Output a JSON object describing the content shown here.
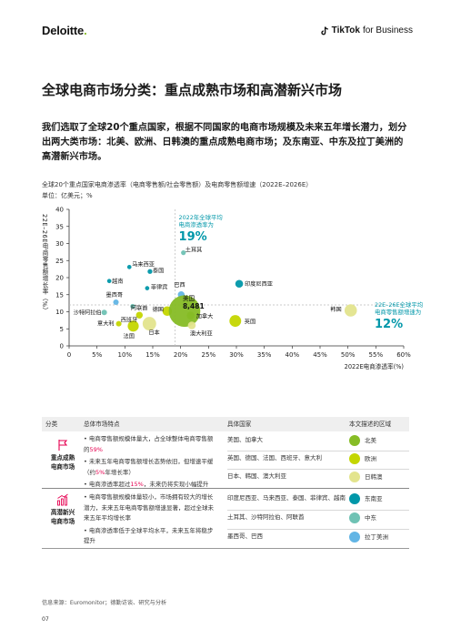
{
  "header": {
    "deloitte_logo": "Deloitte",
    "deloitte_dot": ".",
    "tiktok_logo_strong": "TikTok",
    "tiktok_logo_rest": "for Business"
  },
  "page_title": "全球电商市场分类：重点成熟市场和高潜新兴市场",
  "intro": "我们选取了全球20个重点国家，根据不同国家的电商市场规模及未来五年增长潜力，划分出两大类市场：北美、欧洲、日韩澳的重点成熟电商市场；及东南亚、中东及拉丁美洲的高潜新兴市场。",
  "chart_title": "全球20个重点国家电商渗透率（电商零售额/社会零售额）及电商零售额增速（2022E–2026E）",
  "chart_unit": "单位：亿美元；%",
  "chart_data": {
    "type": "scatter",
    "xlabel": "2022E电商渗透率(%)",
    "ylabel": "22E–26E电商零售额增长率（%）",
    "xlim": [
      0,
      60
    ],
    "ylim": [
      0,
      40
    ],
    "xticks": [
      "0",
      "5%",
      "10%",
      "15%",
      "20%",
      "25%",
      "30%",
      "35%",
      "40%",
      "45%",
      "50%",
      "55%",
      "60%"
    ],
    "yticks": [
      "0",
      "5",
      "10",
      "15",
      "20",
      "25",
      "30",
      "35",
      "40"
    ],
    "avg_x_label": "2022年全球平均\n电商渗透率为",
    "avg_x_value": "19%",
    "avg_x": 19,
    "avg_y_label": "22E–26E全球平均\n电商零售额增速为",
    "avg_y_value": "12%",
    "avg_y": 12,
    "points": [
      {
        "name": "土耳其",
        "x": 20.5,
        "y": 27.3,
        "size": 1.5,
        "region": "me"
      },
      {
        "name": "马来西亚",
        "x": 10.8,
        "y": 23.1,
        "size": 1.2,
        "region": "sea"
      },
      {
        "name": "泰国",
        "x": 14.5,
        "y": 21.8,
        "size": 1.5,
        "region": "sea"
      },
      {
        "name": "越南",
        "x": 7.2,
        "y": 19.0,
        "size": 1.2,
        "region": "sea"
      },
      {
        "name": "菲律宾",
        "x": 14.0,
        "y": 16.9,
        "size": 1.2,
        "region": "sea"
      },
      {
        "name": "印度尼西亚",
        "x": 30.5,
        "y": 18.2,
        "size": 4.0,
        "region": "sea"
      },
      {
        "name": "巴西",
        "x": 20.1,
        "y": 15.0,
        "size": 3.0,
        "region": "latam"
      },
      {
        "name": "墨西哥",
        "x": 8.4,
        "y": 12.8,
        "size": 2.0,
        "region": "latam"
      },
      {
        "name": "阿联酋",
        "x": 11.4,
        "y": 11.6,
        "size": 1.5,
        "region": "me"
      },
      {
        "name": "沙特阿拉伯",
        "x": 6.3,
        "y": 9.8,
        "size": 2.0,
        "region": "me"
      },
      {
        "name": "德国",
        "x": 17.6,
        "y": 10.2,
        "size": 6.0,
        "region": "eu"
      },
      {
        "name": "西班牙",
        "x": 12.6,
        "y": 9.0,
        "size": 3.0,
        "region": "eu"
      },
      {
        "name": "美国",
        "x": 20.7,
        "y": 10.2,
        "size": 65.0,
        "region": "na",
        "label_value": "8,481"
      },
      {
        "name": "加拿大",
        "x": 21.8,
        "y": 8.9,
        "size": 4.0,
        "region": "na"
      },
      {
        "name": "意大利",
        "x": 8.9,
        "y": 6.5,
        "size": 2.0,
        "region": "eu"
      },
      {
        "name": "法国",
        "x": 11.5,
        "y": 5.8,
        "size": 8.0,
        "region": "eu"
      },
      {
        "name": "日本",
        "x": 14.4,
        "y": 6.5,
        "size": 12.0,
        "region": "jka"
      },
      {
        "name": "澳大利亚",
        "x": 22.0,
        "y": 6.0,
        "size": 4.0,
        "region": "jka"
      },
      {
        "name": "英国",
        "x": 29.8,
        "y": 7.3,
        "size": 9.0,
        "region": "eu"
      },
      {
        "name": "韩国",
        "x": 50.5,
        "y": 10.4,
        "size": 10.0,
        "region": "jka"
      }
    ],
    "colors": {
      "na": "#86bc25",
      "eu": "#c4d600",
      "jka": "#e3e48d",
      "sea": "#0097a9",
      "me": "#6fc2b4",
      "latam": "#62b5e5",
      "avg": "#0097a9",
      "axis": "#333333",
      "grid": "#bbbbbb"
    }
  },
  "table": {
    "head_category": "分类",
    "head_features": "总体市场特点",
    "head_countries": "具体国家",
    "head_region": "本文描述的区域",
    "mature_label": "重点成熟\n电商市场",
    "mature_features": [
      {
        "pre": "• 电商零售额规模体量大，占全球整体电商零售额的",
        "hl": "59%",
        "post": ""
      },
      {
        "pre": "• 未来五年电商零售额增长态势依旧，但增速平缓（约",
        "hl": "5%",
        "post": "年增长率）"
      },
      {
        "pre": "• 电商渗透率超过",
        "hl": "15%",
        "post": "，未来仍将实现小幅提升"
      }
    ],
    "mature_rows": [
      {
        "countries": "美国、加拿大",
        "region": "北美",
        "color": "#86bc25"
      },
      {
        "countries": "英国、德国、法国、西班牙、意大利",
        "region": "欧洲",
        "color": "#c4d600"
      },
      {
        "countries": "日本、韩国、澳大利亚",
        "region": "日韩澳",
        "color": "#e3e48d"
      }
    ],
    "emerging_label": "高潜新兴\n电商市场",
    "emerging_features": [
      {
        "pre": "• 电商零售额规模体量较小，市场拥有较大的增长潜力，未来五年电商零售额增速显著，超过全球未来五年平均增长率",
        "hl": "",
        "post": ""
      },
      {
        "pre": "• 电商渗透率低于全球平均水平，未来五年将稳步提升",
        "hl": "",
        "post": ""
      }
    ],
    "emerging_rows": [
      {
        "countries": "印度尼西亚、马来西亚、泰国、菲律宾、越南",
        "region": "东南亚",
        "color": "#0097a9"
      },
      {
        "countries": "土耳其、沙特阿拉伯、阿联酋",
        "region": "中东",
        "color": "#6fc2b4"
      },
      {
        "countries": "墨西哥、巴西",
        "region": "拉丁美洲",
        "color": "#62b5e5"
      }
    ]
  },
  "source": "信息来源：Euromonitor；德勤访谈、研究与分析",
  "page_number": "07"
}
